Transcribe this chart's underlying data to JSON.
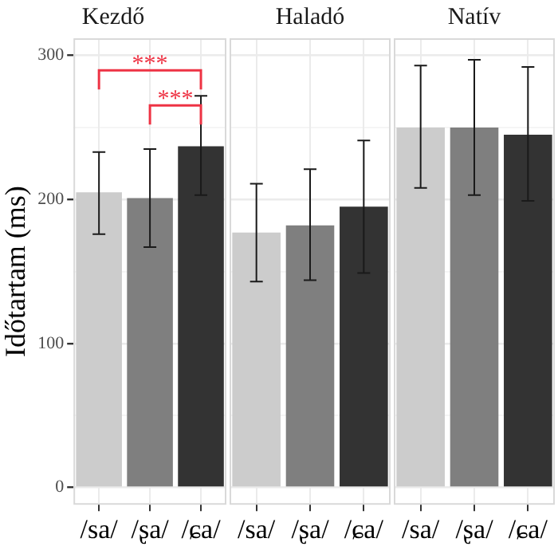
{
  "chart_data": [
    {
      "type": "bar",
      "title": "Kezdő",
      "ylabel": "Időtartam (ms)",
      "categories": [
        "/sa/",
        "/ʂa/",
        "/ɕa/"
      ],
      "values": [
        205,
        201,
        237
      ],
      "colors": [
        "#cccccc",
        "#7f7f7f",
        "#333333"
      ],
      "errors": [
        [
          176,
          233
        ],
        [
          167,
          235
        ],
        [
          203,
          272
        ]
      ],
      "ylim": [
        -12,
        312
      ],
      "yticks": [
        0,
        {
          "value": 50,
          "label": null
        },
        100,
        {
          "value": 150,
          "label": null
        },
        200,
        {
          "value": 250,
          "label": null
        },
        300
      ],
      "grid": true,
      "annotations": [
        "***",
        "***"
      ]
    },
    {
      "type": "bar",
      "title": "Haladó",
      "categories": [
        "/sa/",
        "/ʂa/",
        "/ɕa/"
      ],
      "values": [
        177,
        182,
        195
      ],
      "colors": [
        "#cccccc",
        "#7f7f7f",
        "#333333"
      ],
      "errors": [
        [
          143,
          211
        ],
        [
          144,
          221
        ],
        [
          149,
          241
        ]
      ],
      "ylim": [
        -12,
        312
      ],
      "yticks": [
        0,
        {
          "value": 50,
          "label": null
        },
        100,
        {
          "value": 150,
          "label": null
        },
        200,
        {
          "value": 250,
          "label": null
        },
        300
      ],
      "grid": true,
      "tick_labels": "x"
    },
    {
      "type": "bar",
      "title": "Natív",
      "categories": [
        "/sa/",
        "/ʂa/",
        "/ɕa/"
      ],
      "values": [
        250,
        250,
        245
      ],
      "colors": [
        "#cccccc",
        "#7f7f7f",
        "#333333"
      ],
      "errors": [
        [
          208,
          293
        ],
        [
          203,
          297
        ],
        [
          199,
          292
        ]
      ],
      "ylim": [
        -12,
        312
      ],
      "yticks": [
        0,
        {
          "value": 50,
          "label": null
        },
        100,
        {
          "value": 150,
          "label": null
        },
        200,
        {
          "value": 250,
          "label": null
        },
        300
      ],
      "grid": true,
      "tick_labels": "x"
    }
  ]
}
